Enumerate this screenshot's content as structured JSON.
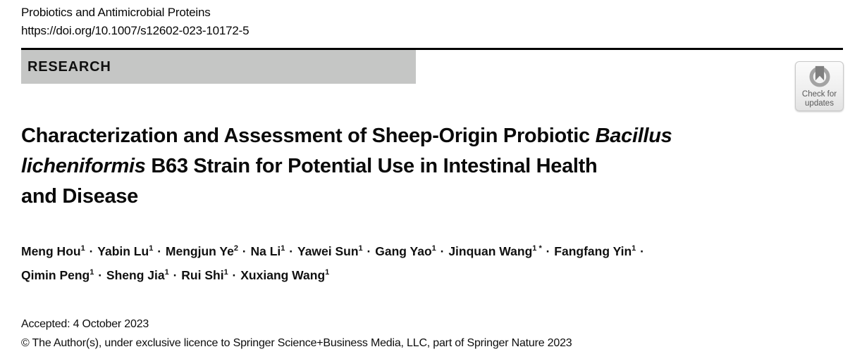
{
  "page": {
    "journal_name": "Probiotics and Antimicrobial Proteins",
    "doi": "https://doi.org/10.1007/s12602-023-10172-5",
    "section_label": "RESEARCH",
    "accepted_line": "Accepted: 4 October 2023",
    "copyright_line": "© The Author(s), under exclusive licence to Springer Science+Business Media, LLC, part of Springer Nature 2023"
  },
  "check_for_updates": {
    "label_line1": "Check for",
    "label_line2": "updates"
  },
  "title": {
    "lines": [
      {
        "segments": [
          {
            "text": "Characterization and Assessment of Sheep-Origin Probiotic ",
            "italic": false
          },
          {
            "text": "Bacillus",
            "italic": true
          }
        ]
      },
      {
        "segments": [
          {
            "text": "licheniformis",
            "italic": true
          },
          {
            "text": " B63 Strain for Potential Use in Intestinal Health",
            "italic": false
          }
        ]
      },
      {
        "segments": [
          {
            "text": "and Disease",
            "italic": false
          }
        ]
      }
    ]
  },
  "authors": {
    "separator": "·",
    "lines": [
      {
        "entries": [
          {
            "name": "Meng Hou",
            "sup": "1"
          },
          {
            "name": "Yabin Lu",
            "sup": "1"
          },
          {
            "name": "Mengjun Ye",
            "sup": "2"
          },
          {
            "name": "Na Li",
            "sup": "1"
          },
          {
            "name": "Yawei Sun",
            "sup": "1"
          },
          {
            "name": "Gang Yao",
            "sup": "1"
          },
          {
            "name": "Jinquan Wang",
            "sup": "1 *"
          },
          {
            "name": "Fangfang Yin",
            "sup": "1"
          }
        ],
        "trailing_separator": true
      },
      {
        "entries": [
          {
            "name": "Qimin Peng",
            "sup": "1"
          },
          {
            "name": "Sheng Jia",
            "sup": "1"
          },
          {
            "name": "Rui Shi",
            "sup": "1"
          },
          {
            "name": "Xuxiang Wang",
            "sup": "1"
          }
        ],
        "trailing_separator": false
      }
    ]
  },
  "colors": {
    "banner_bg": "#c5c6c5",
    "rule": "#000000",
    "badge_bg": "#f2f2f2",
    "badge_border": "#c9c9c9",
    "badge_text": "#595959",
    "icon_ring": "#a3a3a3",
    "icon_bookmark": "#7f7f7f",
    "text": "#0d0d0d"
  }
}
